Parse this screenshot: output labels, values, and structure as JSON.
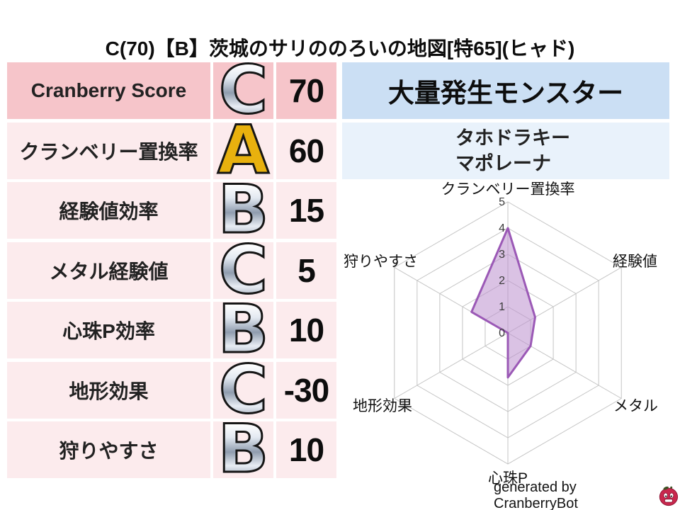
{
  "title": "C(70)【B】茨城のサリののろいの地図[特65](ヒャド)",
  "stats_table": {
    "rows": [
      {
        "label": "Cranberry Score",
        "grade": "C",
        "grade_style": "silver",
        "value": "70",
        "emphasis": true
      },
      {
        "label": "クランベリー置換率",
        "grade": "A",
        "grade_style": "gold",
        "value": "60",
        "emphasis": false
      },
      {
        "label": "経験値効率",
        "grade": "B",
        "grade_style": "silver",
        "value": "15",
        "emphasis": false
      },
      {
        "label": "メタル経験値",
        "grade": "C",
        "grade_style": "silver",
        "value": "5",
        "emphasis": false
      },
      {
        "label": "心珠P効率",
        "grade": "B",
        "grade_style": "silver",
        "value": "10",
        "emphasis": false
      },
      {
        "label": "地形効果",
        "grade": "C",
        "grade_style": "silver",
        "value": "-30",
        "emphasis": false
      },
      {
        "label": "狩りやすさ",
        "grade": "B",
        "grade_style": "silver",
        "value": "10",
        "emphasis": false
      }
    ]
  },
  "monster_panel": {
    "header": "大量発生モンスター",
    "monsters": [
      "タホドラキー",
      "マポレーナ"
    ]
  },
  "chart_data": {
    "type": "radar",
    "axes": [
      "クランベリー置換率",
      "経験値",
      "メタル",
      "心珠P",
      "地形効果",
      "狩りやすさ"
    ],
    "values": [
      4.0,
      1.2,
      1.0,
      1.7,
      0.0,
      1.6
    ],
    "ticks": [
      0,
      1,
      2,
      3,
      4,
      5
    ],
    "rmin": 0,
    "rmax": 5,
    "grid": true,
    "legend": "none",
    "fill_color": "#bb8fce",
    "fill_opacity": 0.55,
    "stroke_color": "#9b59b6",
    "grid_color": "#c4c4c4",
    "tick_color": "#3a3a3a",
    "label_color": "#111111"
  },
  "footer": {
    "text": "generated by CranberryBot",
    "icon": "cranberry-bot-icon"
  },
  "colors": {
    "header_pink": "#f6c5ca",
    "row_pink": "#fcebed",
    "header_blue": "#cbdff4",
    "row_blue": "#e9f2fb",
    "grade_gold": "#ffd83e",
    "grade_silver": "#aab4c2",
    "berry_red": "#c9274d"
  }
}
